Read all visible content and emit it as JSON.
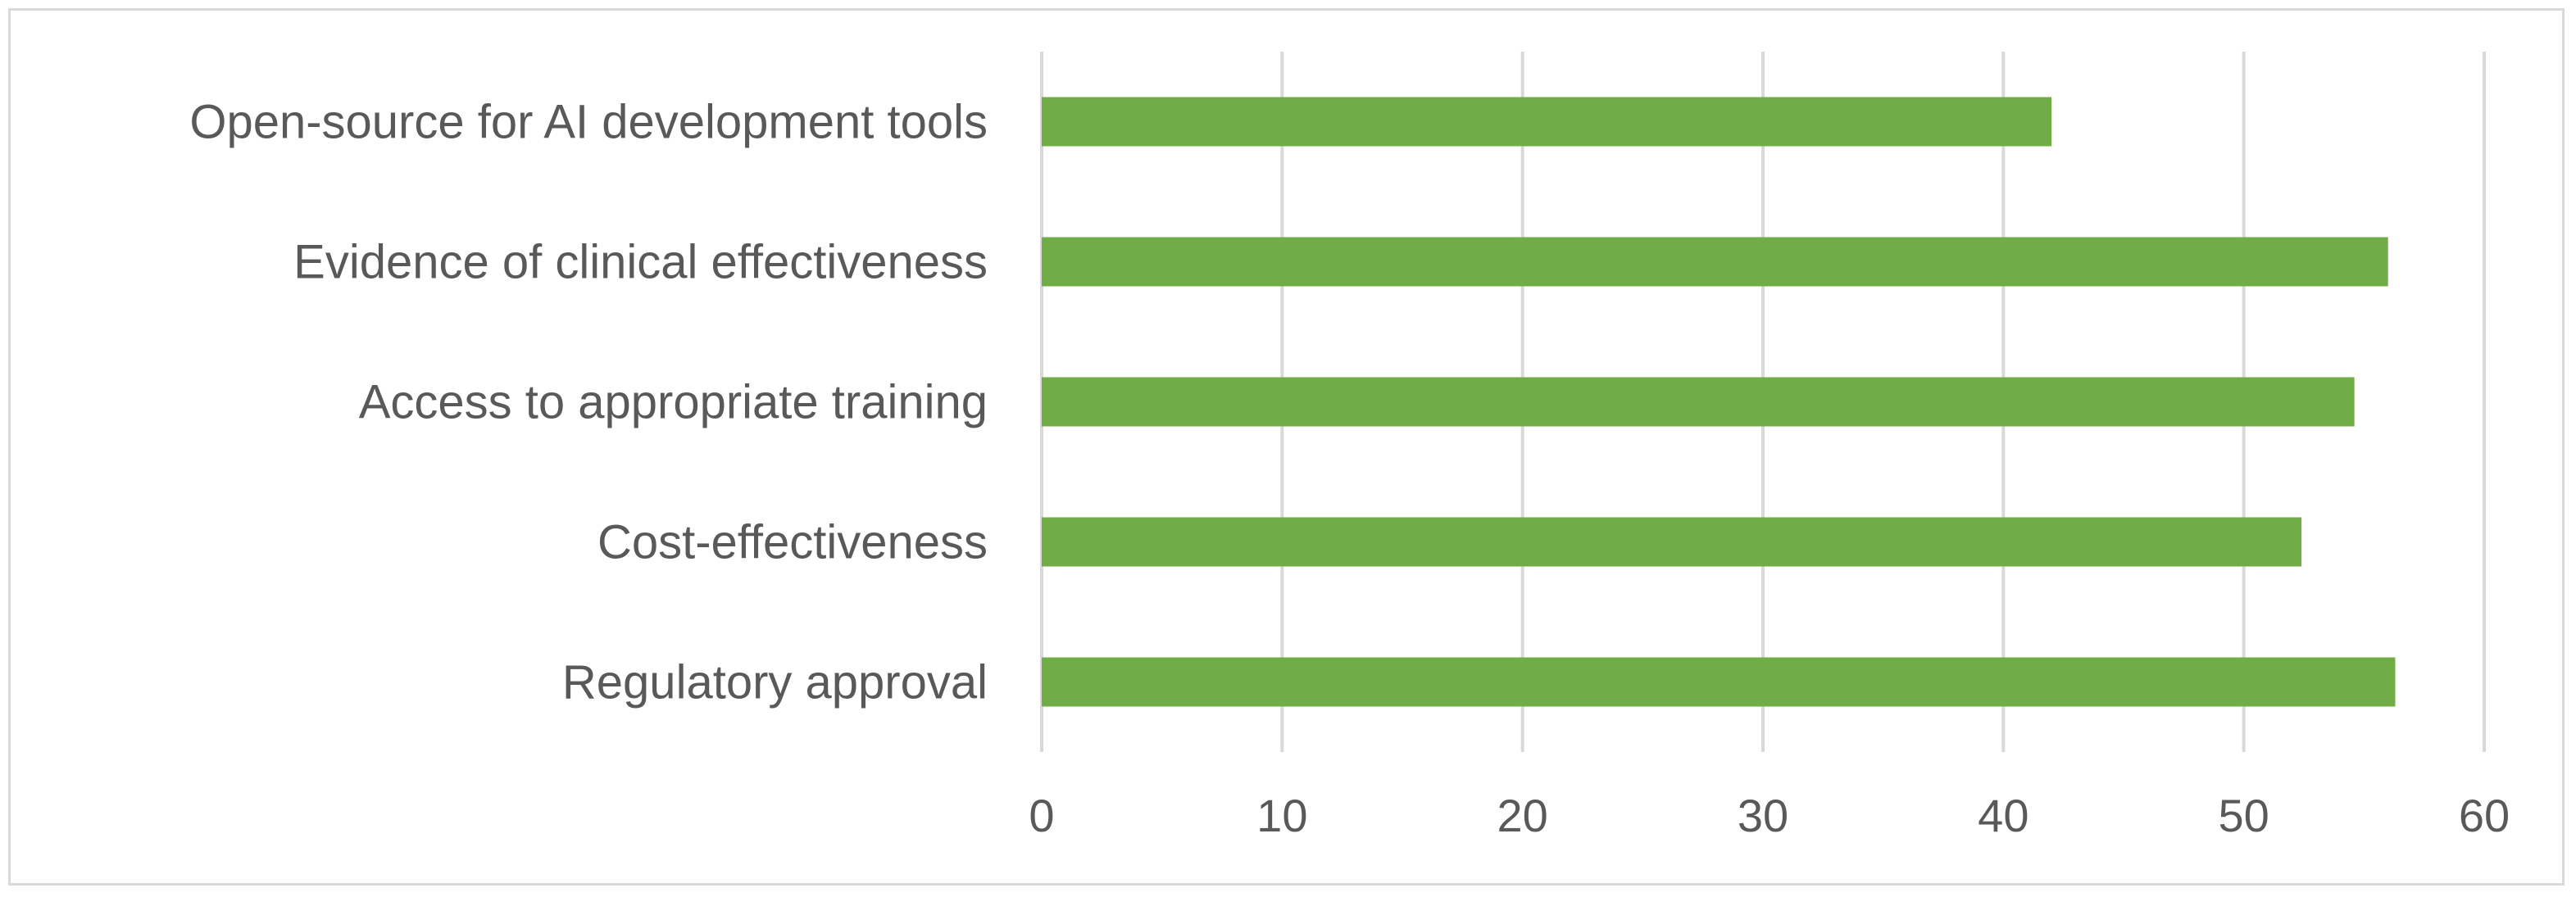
{
  "chart_data": {
    "type": "bar",
    "orientation": "horizontal",
    "categories": [
      "Open-source for AI development tools",
      "Evidence of clinical effectiveness",
      "Access to appropriate training",
      "Cost-effectiveness",
      "Regulatory approval"
    ],
    "values": [
      42,
      56,
      54.6,
      52.4,
      56.3
    ],
    "title": "",
    "xlabel": "",
    "ylabel": "",
    "xlim": [
      0,
      60
    ],
    "xticks": [
      "0",
      "10",
      "20",
      "30",
      "40",
      "50",
      "60"
    ],
    "grid": "vertical",
    "legend": "none",
    "bar_color": "#70ad47"
  }
}
